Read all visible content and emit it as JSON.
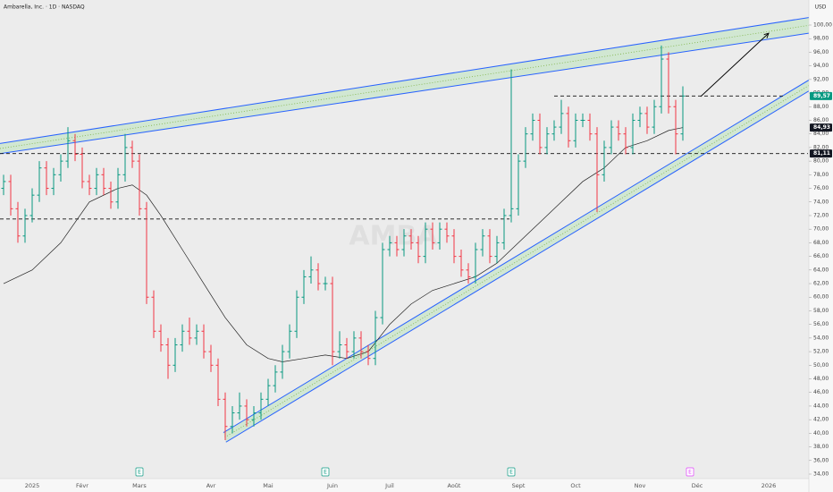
{
  "chart_data": {
    "type": "ohlc",
    "title": "Ambarella, Inc. · 1D · NASDAQ",
    "currency": "USD",
    "watermark": "AMBA",
    "up_color": "#089981",
    "down_color": "#f23645",
    "categories": [
      null,
      null,
      null,
      null,
      "2025",
      null,
      null,
      null,
      null,
      null,
      null,
      "Févr",
      null,
      null,
      null,
      null,
      null,
      null,
      null,
      "Mars",
      null,
      null,
      null,
      null,
      null,
      null,
      null,
      null,
      null,
      "Avr",
      null,
      null,
      null,
      null,
      null,
      null,
      null,
      "Mai",
      null,
      null,
      null,
      null,
      null,
      null,
      null,
      null,
      "Juin",
      null,
      null,
      null,
      null,
      null,
      null,
      null,
      "Juil",
      null,
      null,
      null,
      null,
      null,
      null,
      null,
      null,
      "Août",
      null,
      null,
      null,
      null,
      null,
      null,
      null,
      null,
      "Sept",
      null,
      null,
      null,
      null,
      null,
      null,
      null,
      "Oct",
      null,
      null,
      null,
      null,
      null,
      null,
      null,
      null,
      "Nov",
      null,
      null,
      null,
      null,
      null,
      null,
      null,
      "Déc",
      null,
      null,
      null,
      null,
      null,
      null,
      null,
      null,
      null,
      "2026",
      null,
      null,
      null,
      null,
      null
    ],
    "open": [
      76,
      77,
      73,
      69,
      72,
      75,
      79,
      76,
      78,
      80,
      83,
      81,
      77,
      76,
      78,
      76,
      74,
      78,
      82,
      80,
      73,
      60,
      55,
      53,
      50,
      53,
      55,
      54,
      55,
      52,
      50,
      45,
      41,
      43,
      44,
      42,
      43,
      45,
      47,
      49,
      52,
      55,
      60,
      63,
      64,
      62,
      62,
      52,
      53,
      52,
      54,
      52,
      51,
      57,
      67,
      68,
      67,
      69,
      68,
      66,
      70,
      68,
      70,
      69,
      66,
      64,
      63,
      67,
      69,
      66,
      68,
      72,
      73,
      80,
      84,
      86,
      82,
      84,
      85,
      87,
      83,
      86,
      86,
      84,
      78,
      82,
      85,
      84,
      82,
      86,
      87,
      85,
      88,
      95,
      88,
      84,
      null,
      null,
      null,
      null,
      null,
      null,
      null,
      null,
      null,
      null,
      null,
      null,
      null,
      null,
      null,
      null,
      null
    ],
    "high": [
      78,
      78,
      74,
      73,
      76,
      80,
      80,
      79,
      81,
      85,
      84,
      82,
      78,
      79,
      79,
      77,
      79,
      84,
      83,
      81,
      74,
      61,
      56,
      54,
      54,
      56,
      57,
      56,
      56,
      53,
      51,
      46,
      44,
      46,
      45,
      44,
      46,
      48,
      50,
      53,
      56,
      61,
      64,
      66,
      65,
      63,
      63,
      55,
      54,
      55,
      55,
      53,
      58,
      68,
      69,
      69,
      70,
      70,
      69,
      71,
      71,
      71,
      71,
      70,
      67,
      65,
      68,
      70,
      70,
      69,
      73,
      93.5,
      81,
      85,
      87,
      87,
      85,
      86,
      89,
      88,
      87,
      87,
      87,
      85,
      83,
      86,
      86,
      85,
      87,
      88,
      88,
      89,
      97,
      96,
      89,
      91,
      null,
      null,
      null,
      null,
      null,
      null,
      null,
      null,
      null,
      null,
      null,
      null,
      null,
      null,
      null,
      null,
      null
    ],
    "low": [
      75,
      72,
      68,
      68,
      71,
      74,
      75,
      75,
      77,
      79,
      80,
      76,
      75,
      75,
      75,
      73,
      73,
      77,
      79,
      72,
      59,
      54,
      52,
      48,
      49,
      52,
      53,
      53,
      51,
      49,
      44,
      39,
      40,
      42,
      41,
      41,
      42,
      44,
      46,
      48,
      51,
      54,
      59,
      62,
      61,
      61,
      50,
      51,
      51,
      51,
      51,
      50,
      50,
      56,
      66,
      66,
      66,
      67,
      65,
      65,
      67,
      67,
      68,
      65,
      63,
      62,
      62,
      66,
      65,
      65,
      67,
      71,
      72,
      79,
      83,
      81,
      81,
      83,
      84,
      82,
      82,
      85,
      83,
      72.5,
      77,
      81,
      83,
      81,
      81,
      85,
      84,
      84,
      87,
      87,
      81,
      83,
      null,
      null,
      null,
      null,
      null,
      null,
      null,
      null,
      null,
      null,
      null,
      null,
      null,
      null,
      null,
      null,
      null
    ],
    "close": [
      77,
      73,
      69,
      72,
      75,
      79,
      76,
      78,
      80,
      83,
      81,
      77,
      76,
      78,
      76,
      74,
      78,
      82,
      80,
      73,
      60,
      55,
      53,
      50,
      53,
      55,
      54,
      55,
      52,
      50,
      45,
      41,
      43,
      44,
      42,
      43,
      45,
      47,
      49,
      52,
      55,
      60,
      63,
      64,
      62,
      62,
      52,
      53,
      52,
      54,
      52,
      51,
      57,
      67,
      68,
      67,
      69,
      68,
      66,
      70,
      68,
      70,
      69,
      66,
      64,
      63,
      67,
      69,
      66,
      68,
      72,
      73,
      80,
      84,
      86,
      82,
      84,
      85,
      87,
      83,
      86,
      86,
      84,
      78,
      82,
      85,
      84,
      82,
      86,
      87,
      85,
      88,
      95,
      88,
      84,
      89.57,
      null,
      null,
      null,
      null,
      null,
      null,
      null,
      null,
      null,
      null,
      null,
      null,
      null,
      null,
      null,
      null,
      null
    ],
    "moving_average": {
      "color": "#222222",
      "x": [
        0,
        4,
        8,
        12,
        16,
        18,
        20,
        22,
        25,
        28,
        31,
        34,
        37,
        39,
        42,
        45,
        48,
        51,
        54,
        57,
        60,
        63,
        66,
        69,
        72,
        75,
        78,
        81,
        84,
        87,
        90,
        93,
        95
      ],
      "values": [
        62,
        64,
        68,
        74,
        76,
        76.5,
        75,
        72,
        67,
        62,
        57,
        53,
        51,
        50.5,
        51,
        51.5,
        51,
        52,
        56,
        59,
        61,
        62,
        63,
        65,
        68,
        71,
        74,
        77,
        79,
        82,
        83,
        84.5,
        84.93
      ]
    },
    "horizontal_lines": [
      {
        "value": 81.11,
        "from": -0.5,
        "to": 112.5
      },
      {
        "value": 89.57,
        "from": 77,
        "to": 109
      },
      {
        "value": 71.5,
        "from": -0.5,
        "to": 70.75
      }
    ],
    "channels": [
      {
        "lines": [
          [
            [
              -0.5,
              82.6
            ],
            [
              112.6,
              101.1
            ]
          ],
          [
            [
              -0.5,
              81.1
            ],
            [
              112.6,
              98.8
            ]
          ]
        ]
      },
      {
        "lines": [
          [
            [
              30.75,
              40.1
            ],
            [
              112.6,
              91.9
            ]
          ],
          [
            [
              31.1,
              38.7
            ],
            [
              112.6,
              90.3
            ]
          ]
        ]
      }
    ],
    "channel_color": "#2962ff",
    "channel_fill": "#c8e6c9",
    "arrow": {
      "from": [
        97.5,
        89.5
      ],
      "to": [
        107,
        98.8
      ]
    },
    "events": [
      {
        "x": 19,
        "label": "E",
        "color": "#089981"
      },
      {
        "x": 45,
        "label": "E",
        "color": "#089981"
      },
      {
        "x": 71,
        "label": "E",
        "color": "#089981"
      },
      {
        "x": 96,
        "label": "E",
        "color": "#e040fb"
      }
    ],
    "axis_labels": [
      {
        "value": 89.57,
        "label": "89,57",
        "color": "#089981"
      },
      {
        "value": 84.93,
        "label": "84,93",
        "color": "#131722"
      },
      {
        "value": 81.11,
        "label": "81,11",
        "color": "#131722"
      }
    ],
    "ylim": [
      34,
      100
    ],
    "yticks": [
      {
        "value": 34,
        "label": "34,00"
      },
      {
        "value": 36,
        "label": "36,00"
      },
      {
        "value": 38,
        "label": "38,00"
      },
      {
        "value": 40,
        "label": "40,00"
      },
      {
        "value": 42,
        "label": "42,00"
      },
      {
        "value": 44,
        "label": "44,00"
      },
      {
        "value": 46,
        "label": "46,00"
      },
      {
        "value": 48,
        "label": "48,00"
      },
      {
        "value": 50,
        "label": "50,00"
      },
      {
        "value": 52,
        "label": "52,00"
      },
      {
        "value": 54,
        "label": "54,00"
      },
      {
        "value": 56,
        "label": "56,00"
      },
      {
        "value": 58,
        "label": "58,00"
      },
      {
        "value": 60,
        "label": "60,00"
      },
      {
        "value": 62,
        "label": "62,00"
      },
      {
        "value": 64,
        "label": "64,00"
      },
      {
        "value": 66,
        "label": "66,00"
      },
      {
        "value": 68,
        "label": "68,00"
      },
      {
        "value": 70,
        "label": "70,00"
      },
      {
        "value": 72,
        "label": "72,00"
      },
      {
        "value": 74,
        "label": "74,00"
      },
      {
        "value": 76,
        "label": "76,00"
      },
      {
        "value": 78,
        "label": "78,00"
      },
      {
        "value": 80,
        "label": "80,00"
      },
      {
        "value": 82,
        "label": "82,00"
      },
      {
        "value": 84,
        "label": "84,00"
      },
      {
        "value": 86,
        "label": "86,00"
      },
      {
        "value": 88,
        "label": "88,00"
      },
      {
        "value": 90,
        "label": "90,00"
      },
      {
        "value": 92,
        "label": "92,00"
      },
      {
        "value": 94,
        "label": "94,00"
      },
      {
        "value": 96,
        "label": "96,00"
      },
      {
        "value": 98,
        "label": "98,00"
      },
      {
        "value": 100,
        "label": "100,00"
      }
    ]
  }
}
